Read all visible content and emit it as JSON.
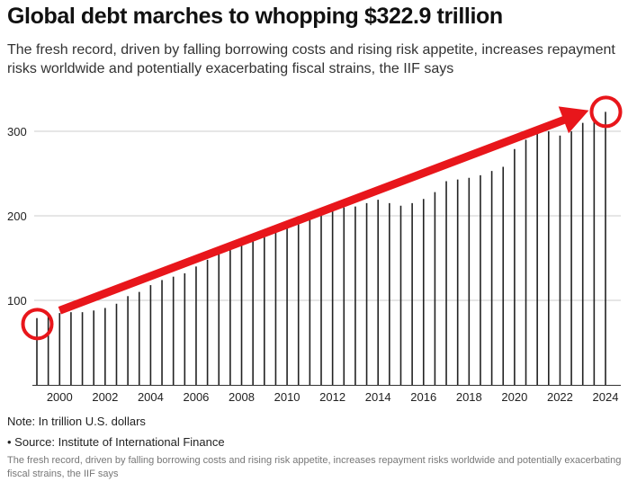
{
  "title": "Global debt marches to whopping $322.9 trillion",
  "subtitle": "The fresh record, driven by falling borrowing costs and rising risk appetite, increases repayment risks worldwide and potentially exacerbating fiscal strains, the IIF says",
  "note": "Note: In trillion U.S. dollars",
  "source": "• Source: Institute of International Finance",
  "caption": "The fresh record, driven by falling borrowing costs and rising risk appetite, increases repayment risks worldwide and potentially exacerbating fiscal strains, the IIF says",
  "colors": {
    "bars": "#222222",
    "grid": "#cccccc",
    "annotation": "#e8161b"
  },
  "chart_data": {
    "type": "bar",
    "x": [
      1999.0,
      1999.5,
      2000.0,
      2000.5,
      2001.0,
      2001.5,
      2002.0,
      2002.5,
      2003.0,
      2003.5,
      2004.0,
      2004.5,
      2005.0,
      2005.5,
      2006.0,
      2006.5,
      2007.0,
      2007.5,
      2008.0,
      2008.5,
      2009.0,
      2009.5,
      2010.0,
      2010.5,
      2011.0,
      2011.5,
      2012.0,
      2012.5,
      2013.0,
      2013.5,
      2014.0,
      2014.5,
      2015.0,
      2015.5,
      2016.0,
      2016.5,
      2017.0,
      2017.5,
      2018.0,
      2018.5,
      2019.0,
      2019.5,
      2020.0,
      2020.5,
      2021.0,
      2021.5,
      2022.0,
      2022.5,
      2023.0,
      2023.5,
      2024.0
    ],
    "values": [
      79,
      81,
      85,
      86,
      86,
      88,
      91,
      96,
      105,
      110,
      118,
      124,
      128,
      132,
      140,
      148,
      155,
      163,
      171,
      176,
      180,
      186,
      190,
      196,
      200,
      204,
      209,
      210,
      211,
      215,
      219,
      215,
      212,
      215,
      220,
      228,
      241,
      243,
      245,
      248,
      253,
      258,
      279,
      290,
      297,
      300,
      295,
      300,
      310,
      314,
      323
    ],
    "xticks": [
      "2000",
      "2002",
      "2004",
      "2006",
      "2008",
      "2010",
      "2012",
      "2014",
      "2016",
      "2018",
      "2020",
      "2022",
      "2024"
    ],
    "yticks": [
      "100",
      "200",
      "300"
    ],
    "ylim": [
      0,
      340
    ],
    "grid": "horizontal",
    "annotations": [
      "arrow from 1999 to 2024",
      "circle at 1999",
      "circle at 2024"
    ]
  }
}
